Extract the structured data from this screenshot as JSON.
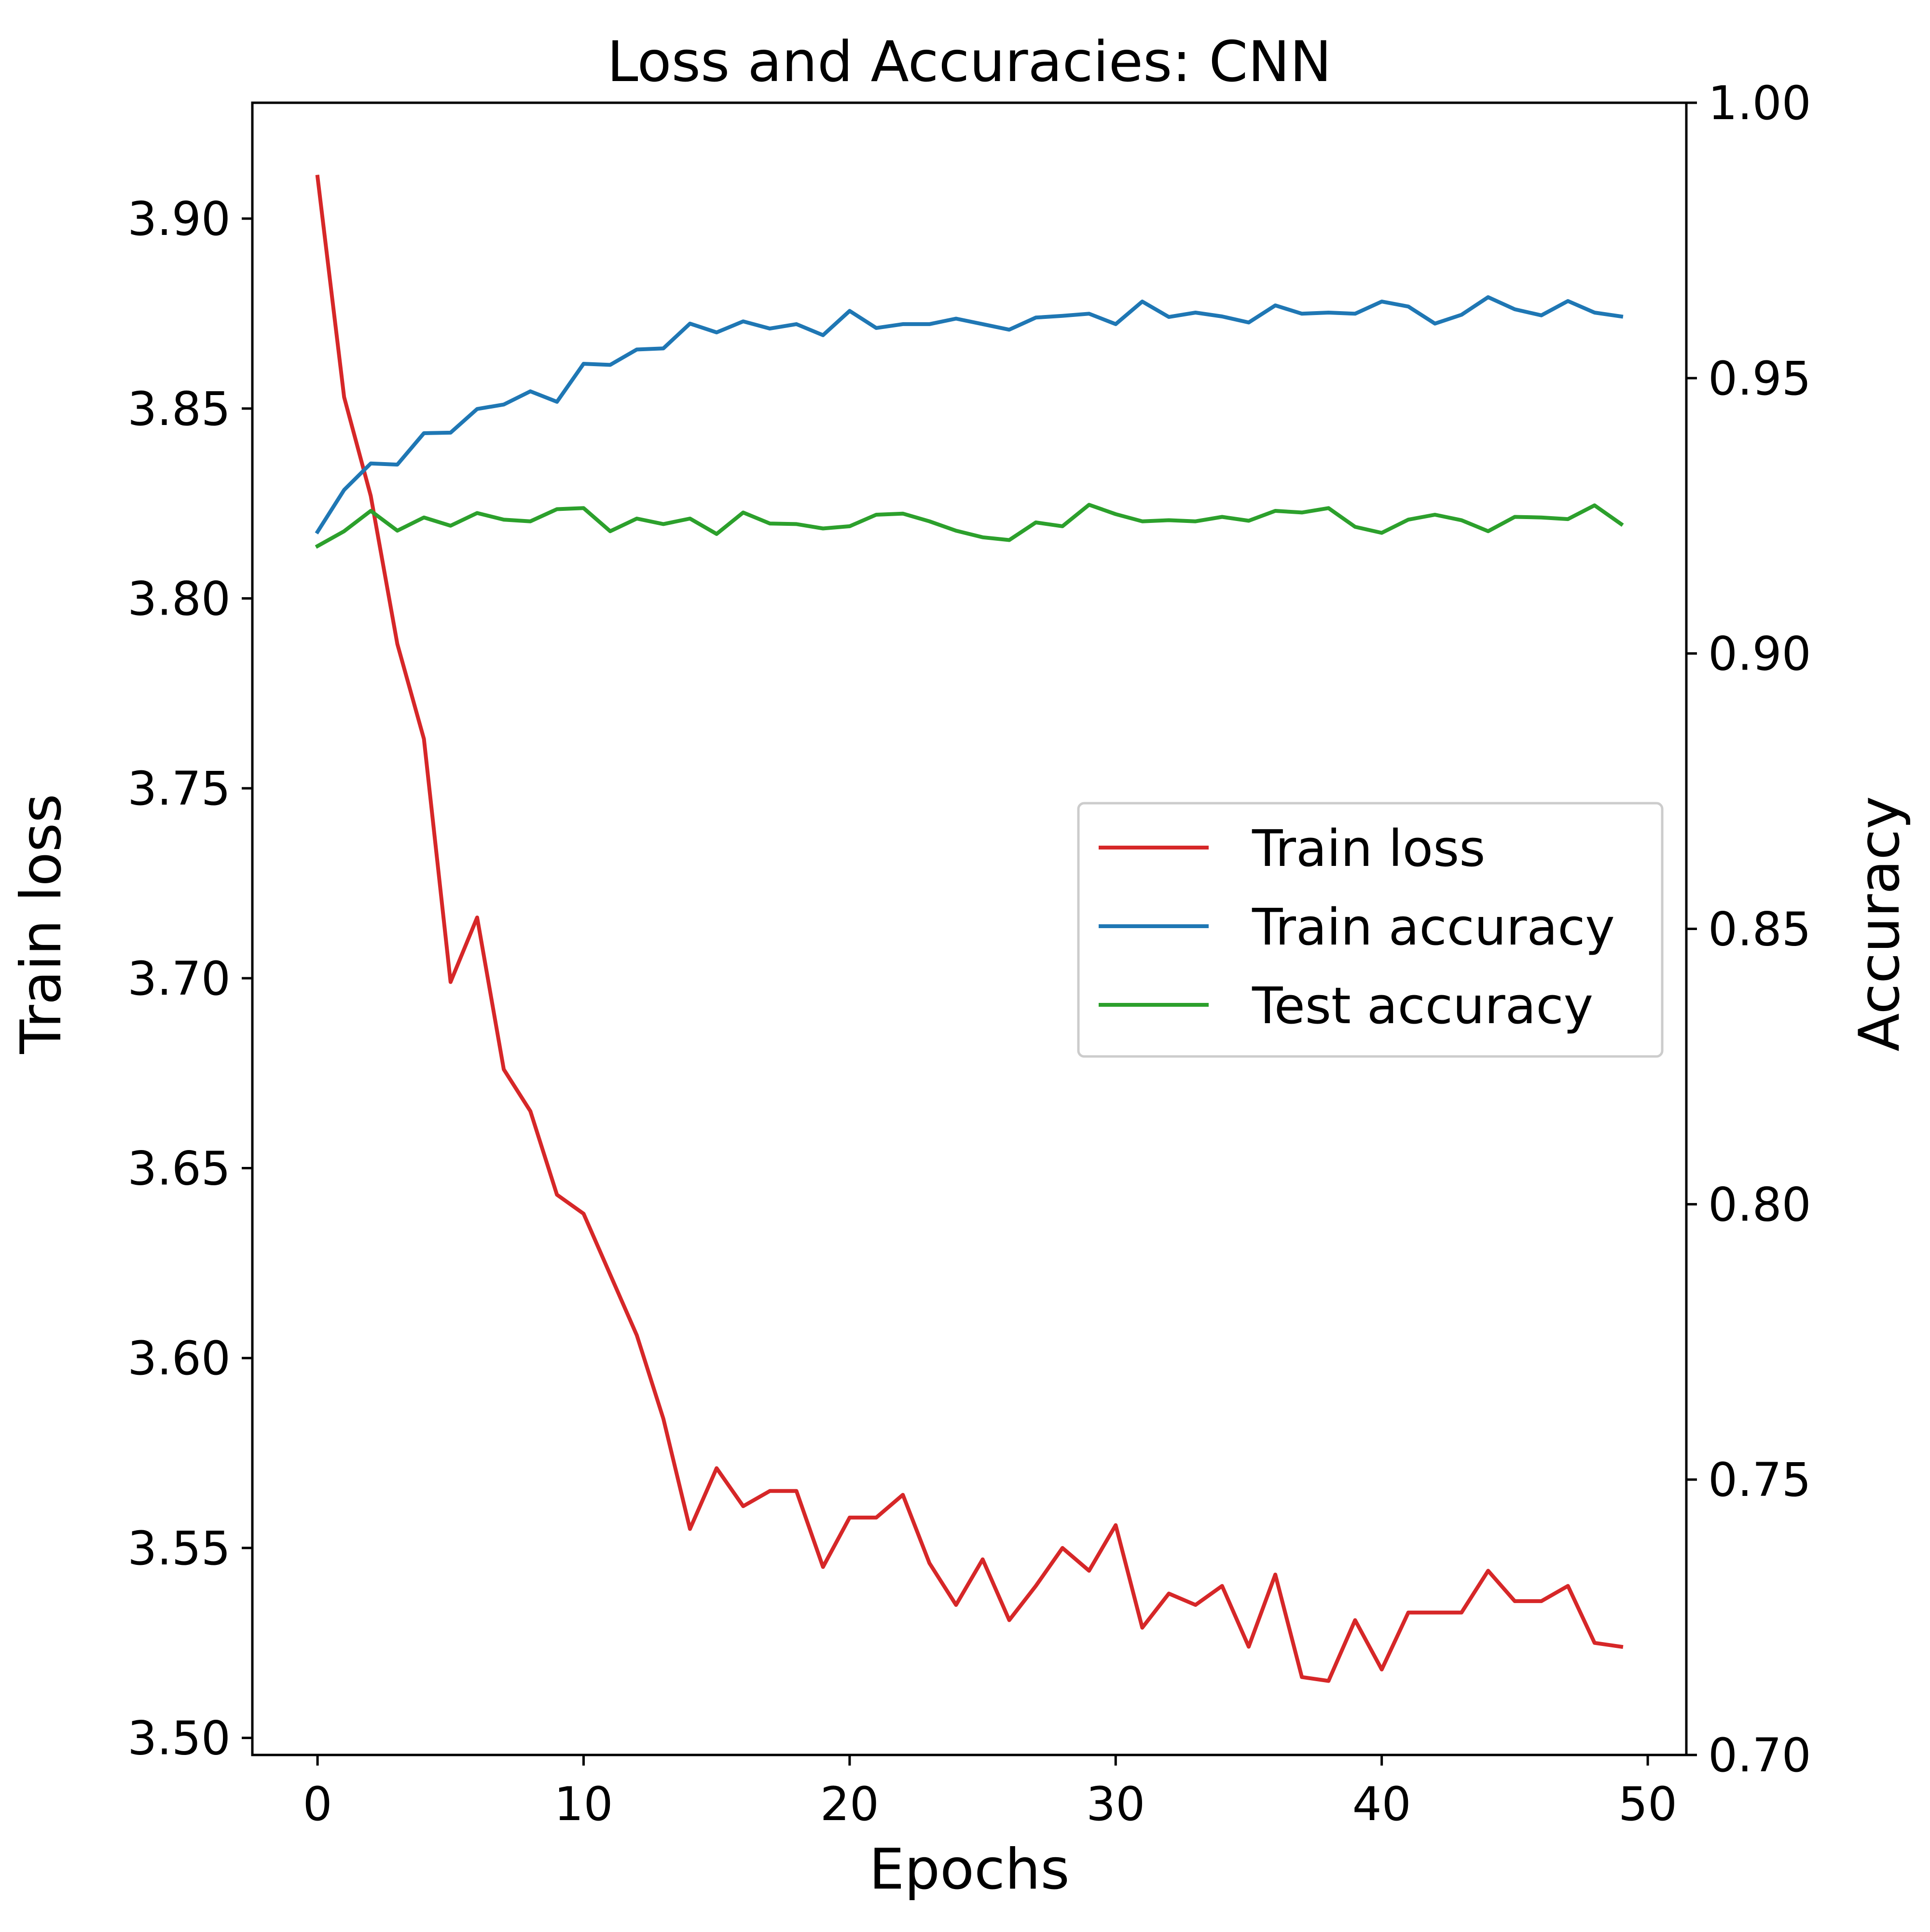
{
  "chart_data": {
    "type": "line",
    "title": "Loss and Accuracies: CNN",
    "xlabel": "Epochs",
    "ylabel_left": "Train loss",
    "ylabel_right": "Accuracy",
    "xlim": [
      -2.45,
      51.45
    ],
    "ylim_left": [
      3.4955,
      3.9305
    ],
    "ylim_right": [
      0.7,
      1.0
    ],
    "xticks": [
      0,
      10,
      20,
      30,
      40,
      50
    ],
    "xtick_labels": [
      "0",
      "10",
      "20",
      "30",
      "40",
      "50"
    ],
    "yticks_left": [
      3.5,
      3.55,
      3.6,
      3.65,
      3.7,
      3.75,
      3.8,
      3.85,
      3.9
    ],
    "ytick_labels_left": [
      "3.50",
      "3.55",
      "3.60",
      "3.65",
      "3.70",
      "3.75",
      "3.80",
      "3.85",
      "3.90"
    ],
    "yticks_right": [
      0.7,
      0.75,
      0.8,
      0.85,
      0.9,
      0.95,
      1.0
    ],
    "ytick_labels_right": [
      "0.70",
      "0.75",
      "0.80",
      "0.85",
      "0.90",
      "0.95",
      "1.00"
    ],
    "grid": false,
    "legend_position": "center-right",
    "x": [
      0,
      1,
      2,
      3,
      4,
      5,
      6,
      7,
      8,
      9,
      10,
      11,
      12,
      13,
      14,
      15,
      16,
      17,
      18,
      19,
      20,
      21,
      22,
      23,
      24,
      25,
      26,
      27,
      28,
      29,
      30,
      31,
      32,
      33,
      34,
      35,
      36,
      37,
      38,
      39,
      40,
      41,
      42,
      43,
      44,
      45,
      46,
      47,
      48,
      49
    ],
    "series": [
      {
        "name": "Train loss",
        "axis": "left",
        "color": "#d62728",
        "values": [
          3.911,
          3.853,
          3.827,
          3.788,
          3.763,
          3.699,
          3.716,
          3.676,
          3.665,
          3.643,
          3.638,
          3.622,
          3.606,
          3.584,
          3.555,
          3.571,
          3.561,
          3.565,
          3.565,
          3.545,
          3.558,
          3.558,
          3.564,
          3.546,
          3.535,
          3.547,
          3.531,
          3.54,
          3.55,
          3.544,
          3.556,
          3.529,
          3.538,
          3.535,
          3.54,
          3.524,
          3.543,
          3.516,
          3.515,
          3.531,
          3.518,
          3.533,
          3.533,
          3.533,
          3.544,
          3.536,
          3.536,
          3.54,
          3.525,
          3.524
        ]
      },
      {
        "name": "Train accuracy",
        "axis": "right",
        "color": "#1f77b4",
        "values": [
          0.9221,
          0.9297,
          0.9345,
          0.9343,
          0.94,
          0.9401,
          0.9444,
          0.9452,
          0.9476,
          0.9457,
          0.9526,
          0.9524,
          0.9552,
          0.9554,
          0.9599,
          0.9583,
          0.9603,
          0.959,
          0.9598,
          0.9578,
          0.9622,
          0.9591,
          0.9598,
          0.9598,
          0.9608,
          0.9598,
          0.9588,
          0.961,
          0.9613,
          0.9617,
          0.9598,
          0.9639,
          0.9611,
          0.9619,
          0.9612,
          0.9601,
          0.9632,
          0.9617,
          0.9619,
          0.9617,
          0.9639,
          0.963,
          0.9599,
          0.9615,
          0.9647,
          0.9625,
          0.9614,
          0.964,
          0.9619,
          0.9612
        ]
      },
      {
        "name": "Test accuracy",
        "axis": "right",
        "color": "#2ca02c",
        "values": [
          0.9195,
          0.9222,
          0.9259,
          0.9223,
          0.9247,
          0.9232,
          0.9255,
          0.9243,
          0.924,
          0.9262,
          0.9264,
          0.9222,
          0.9245,
          0.9235,
          0.9245,
          0.9217,
          0.9256,
          0.9236,
          0.9235,
          0.9227,
          0.9231,
          0.9252,
          0.9254,
          0.924,
          0.9223,
          0.9211,
          0.9206,
          0.9238,
          0.9231,
          0.927,
          0.9253,
          0.924,
          0.9242,
          0.924,
          0.9248,
          0.9241,
          0.9259,
          0.9256,
          0.9264,
          0.923,
          0.9219,
          0.9243,
          0.9252,
          0.9242,
          0.9222,
          0.9248,
          0.9247,
          0.9244,
          0.9269,
          0.9235
        ]
      }
    ]
  }
}
